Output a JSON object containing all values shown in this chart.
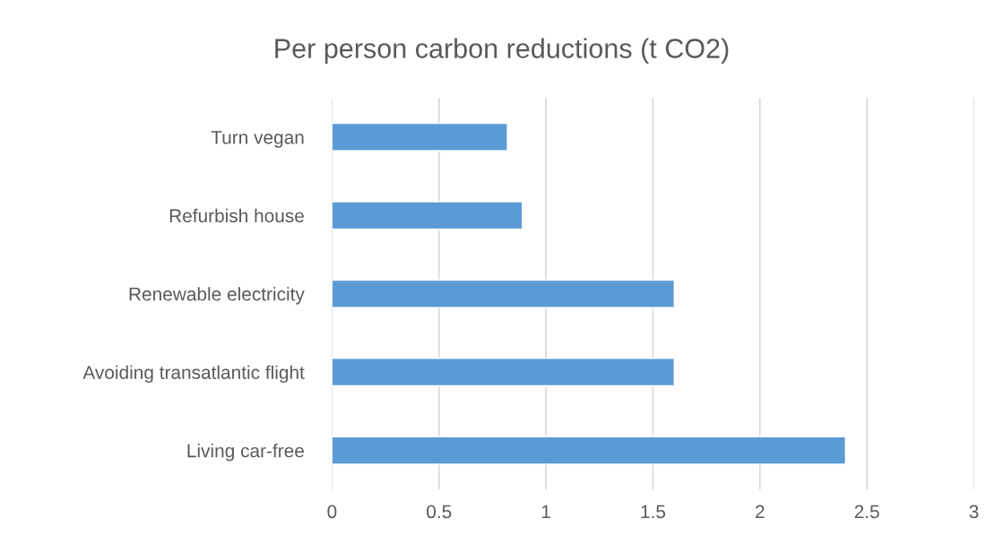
{
  "chart_data": {
    "type": "bar",
    "orientation": "horizontal",
    "title": "Per person carbon reductions (t CO2)",
    "categories": [
      "Turn vegan",
      "Refurbish house",
      "Renewable electricity",
      "Avoiding transatlantic flight",
      "Living car-free"
    ],
    "values": [
      0.82,
      0.89,
      1.6,
      1.6,
      2.4
    ],
    "color": "#5b9bd5",
    "xlim": [
      0,
      3
    ],
    "xticks": [
      0,
      0.5,
      1,
      1.5,
      2,
      2.5,
      3
    ],
    "grid": "x",
    "legend": false
  }
}
